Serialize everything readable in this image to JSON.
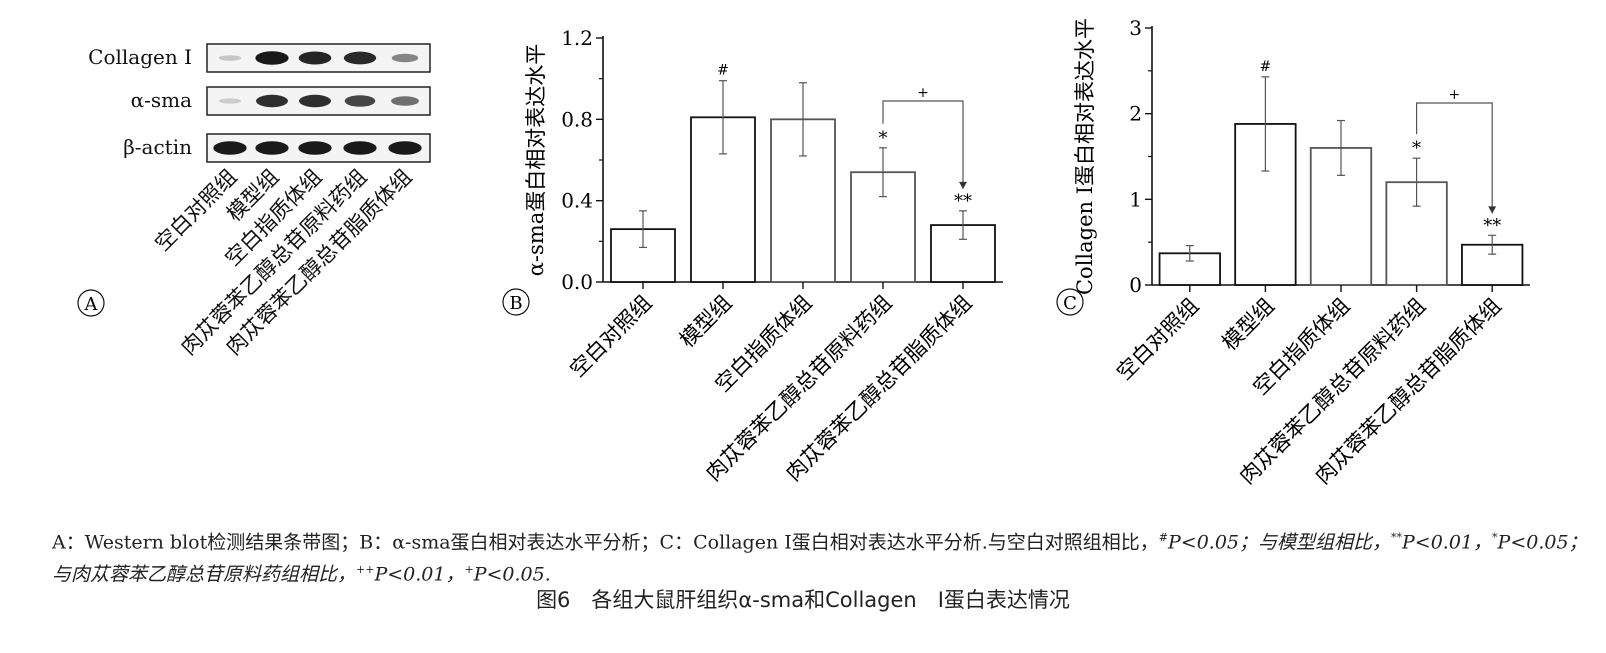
{
  "panel_labels": {
    "a": "A",
    "b": "B",
    "c": "C"
  },
  "western_blot": {
    "rows": [
      {
        "label": "Collagen I",
        "intensities": [
          0.15,
          0.95,
          0.9,
          0.88,
          0.45
        ]
      },
      {
        "label": "α-sma",
        "intensities": [
          0.12,
          0.85,
          0.85,
          0.75,
          0.55
        ]
      },
      {
        "label": "β-actin",
        "intensities": [
          0.95,
          0.95,
          0.95,
          0.95,
          0.95
        ]
      }
    ],
    "lanes": [
      "空白对照组",
      "模型组",
      "空白指质体组",
      "肉苁蓉苯乙醇总苷原料药组",
      "肉苁蓉苯乙醇总苷脂质体组"
    ]
  },
  "chart_data": [
    {
      "type": "bar",
      "panel": "B",
      "categories": [
        "空白对照组",
        "模型组",
        "空白指质体组",
        "肉苁蓉苯乙醇总苷原料药组",
        "肉苁蓉苯乙醇总苷脂质体组"
      ],
      "values": [
        0.26,
        0.81,
        0.8,
        0.54,
        0.28
      ],
      "errors": [
        0.09,
        0.18,
        0.18,
        0.12,
        0.07
      ],
      "marks": [
        "",
        "#",
        "",
        "*",
        "**"
      ],
      "bracket": {
        "from": 3,
        "to": 4,
        "label": "+"
      },
      "ylabel": "α-sma蛋白相对表达水平",
      "ylim": [
        0,
        1.2
      ],
      "yticks": [
        "0.0",
        "0.4",
        "0.8",
        "1.2"
      ],
      "ytick_values": [
        0,
        0.4,
        0.8,
        1.2
      ],
      "grid": false
    },
    {
      "type": "bar",
      "panel": "C",
      "categories": [
        "空白对照组",
        "模型组",
        "空白指质体组",
        "肉苁蓉苯乙醇总苷原料药组",
        "肉苁蓉苯乙醇总苷脂质体组"
      ],
      "values": [
        0.37,
        1.88,
        1.6,
        1.2,
        0.47
      ],
      "errors": [
        0.09,
        0.55,
        0.32,
        0.28,
        0.11
      ],
      "marks": [
        "",
        "#",
        "",
        "*",
        "**"
      ],
      "bracket": {
        "from": 3,
        "to": 4,
        "label": "+"
      },
      "ylabel": "Collagen I蛋白相对表达水平",
      "ylim": [
        0,
        3
      ],
      "yticks": [
        "0",
        "1",
        "2",
        "3"
      ],
      "ytick_values": [
        0,
        1,
        2,
        3
      ],
      "grid": false
    }
  ],
  "caption": {
    "line1_part1": "A：Western blot检测结果条带图；B：α-sma蛋白相对表达水平分析；C：Collagen Ⅰ蛋白相对表达水平分析.与空白对照组相比，",
    "line1_sup1": "#",
    "line1_part2": "P<0.05；与模型组相比，",
    "line1_sup2": "**",
    "line1_part3": "P<0.01，",
    "line1_sup3": "*",
    "line1_part4": "P<0.05；与肉苁蓉苯乙醇总苷原料药组相比，",
    "line1_sup4": "++",
    "line1_part5": "P<0.01，",
    "line1_sup5": "+",
    "line1_part6": "P<0.05."
  },
  "figure_title": "图6　各组大鼠肝组织α-sma和Collagen　Ⅰ蛋白表达情况"
}
